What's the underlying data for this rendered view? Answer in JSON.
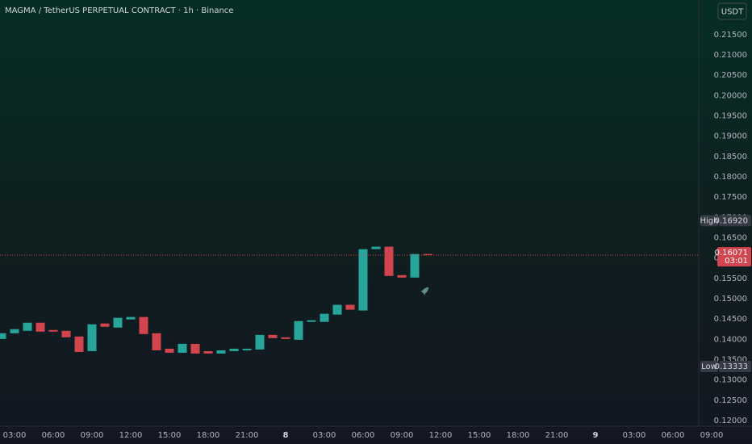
{
  "chart_data": {
    "type": "candlestick",
    "title": "MAGMA / TetherUS PERPETUAL CONTRACT · 1h · Binance",
    "currency": "USDT",
    "up_color": "#26a69a",
    "down_color": "#d2444e",
    "x": [
      -1,
      0,
      1,
      2,
      3,
      4,
      5,
      6,
      7,
      8,
      9,
      10,
      11,
      12,
      13,
      14,
      15,
      16,
      17,
      18,
      19,
      20,
      21,
      22,
      23,
      24,
      25,
      26,
      27,
      28,
      29,
      30,
      31,
      32
    ],
    "open": [
      0.1401,
      0.1415,
      0.1421,
      0.1441,
      0.1423,
      0.1421,
      0.1407,
      0.1371,
      0.1439,
      0.1429,
      0.1449,
      0.1455,
      0.1415,
      0.1377,
      0.1367,
      0.1389,
      0.1371,
      0.1365,
      0.1371,
      0.1373,
      0.1375,
      0.1411,
      0.1405,
      0.1399,
      0.1443,
      0.1443,
      0.1461,
      0.1485,
      0.1471,
      0.1622,
      0.1628,
      0.1558,
      0.1552,
      0.161
    ],
    "high": {
      "value": 0.1692,
      "label": "0.16920"
    },
    "low": 0.13333,
    "close": [
      0.1415,
      0.1425,
      0.1441,
      0.1419,
      0.1419,
      0.1405,
      0.1369,
      0.1437,
      0.1431,
      0.1453,
      0.1455,
      0.1413,
      0.1373,
      0.1367,
      0.1389,
      0.1365,
      0.1365,
      0.1373,
      0.1377,
      0.1377,
      0.1411,
      0.1403,
      0.1401,
      0.1445,
      0.1447,
      0.1463,
      0.1485,
      0.1473,
      0.1622,
      0.1628,
      0.1556,
      0.1552,
      0.161,
      0.16071
    ],
    "xlim": [
      -1.125,
      54.125
    ],
    "xticks": [
      {
        "value": 0,
        "label": "03:00"
      },
      {
        "value": 3,
        "label": "06:00"
      },
      {
        "value": 6,
        "label": "09:00"
      },
      {
        "value": 9,
        "label": "12:00"
      },
      {
        "value": 12,
        "label": "15:00"
      },
      {
        "value": 15,
        "label": "18:00"
      },
      {
        "value": 18,
        "label": "21:00"
      },
      {
        "value": 21,
        "label": "8"
      },
      {
        "value": 24,
        "label": "03:00"
      },
      {
        "value": 27,
        "label": "06:00"
      },
      {
        "value": 30,
        "label": "09:00"
      },
      {
        "value": 33,
        "label": "12:00"
      },
      {
        "value": 36,
        "label": "15:00"
      },
      {
        "value": 39,
        "label": "18:00"
      },
      {
        "value": 42,
        "label": "21:00"
      },
      {
        "value": 45,
        "label": "9"
      },
      {
        "value": 48,
        "label": "03:00"
      },
      {
        "value": 51,
        "label": "06:00"
      },
      {
        "value": 54,
        "label": "09:00"
      }
    ],
    "ylim": [
      0.11802,
      0.22272
    ],
    "yticks": [
      {
        "value": 0.12,
        "label": "0.12000"
      },
      {
        "value": 0.125,
        "label": "0.12500"
      },
      {
        "value": 0.13,
        "label": "0.13000"
      },
      {
        "value": 0.135,
        "label": "0.13500"
      },
      {
        "value": 0.14,
        "label": "0.14000"
      },
      {
        "value": 0.145,
        "label": "0.14500"
      },
      {
        "value": 0.15,
        "label": "0.15000"
      },
      {
        "value": 0.155,
        "label": "0.15500"
      },
      {
        "value": 0.16,
        "label": "0.16000"
      },
      {
        "value": 0.165,
        "label": "0.16500"
      },
      {
        "value": 0.17,
        "label": "0.17000"
      },
      {
        "value": 0.175,
        "label": "0.17500"
      },
      {
        "value": 0.18,
        "label": "0.18000"
      },
      {
        "value": 0.185,
        "label": "0.18500"
      },
      {
        "value": 0.19,
        "label": "0.19000"
      },
      {
        "value": 0.195,
        "label": "0.19500"
      },
      {
        "value": 0.2,
        "label": "0.20000"
      },
      {
        "value": 0.205,
        "label": "0.20500"
      },
      {
        "value": 0.21,
        "label": "0.21000"
      },
      {
        "value": 0.215,
        "label": "0.21500"
      }
    ],
    "high_label": "High",
    "low_label": "Low",
    "last_price": 0.16071,
    "countdown": "03:01"
  }
}
